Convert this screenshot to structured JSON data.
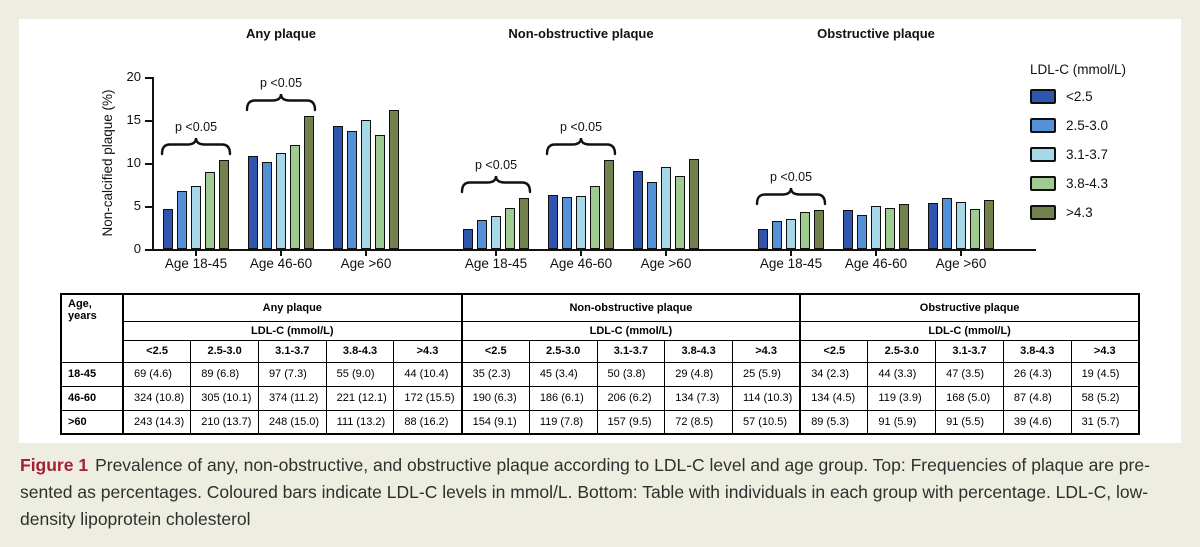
{
  "colors": {
    "page_background": "#edeee1",
    "panel_background": "#ffffff",
    "axis_color": "#111111",
    "caption_label_color": "#a31f34",
    "bar_palette": [
      "#2f55ae",
      "#5591d6",
      "#a7d8e8",
      "#9fcb90",
      "#73814f"
    ]
  },
  "chart_data": {
    "type": "bar",
    "title": "",
    "xlabel": "",
    "ylabel": "Non-calcified plaque (%)",
    "ylim": [
      0,
      20
    ],
    "yticks": [
      0,
      5,
      10,
      15,
      20
    ],
    "grid": false,
    "legend_position": "right",
    "legend_title": "LDL-C (mmol/L)",
    "series_labels": [
      "<2.5",
      "2.5-3.0",
      "3.1-3.7",
      "3.8-4.3",
      ">4.3"
    ],
    "series_colors": [
      "#2f55ae",
      "#5591d6",
      "#a7d8e8",
      "#9fcb90",
      "#73814f"
    ],
    "group_labels": [
      "Age 18-45",
      "Age 46-60",
      "Age >60"
    ],
    "panels": [
      {
        "title": "Any plaque",
        "groups": [
          [
            4.6,
            6.8,
            7.3,
            9.0,
            10.4
          ],
          [
            10.8,
            10.1,
            11.2,
            12.1,
            15.5
          ],
          [
            14.3,
            13.7,
            15.0,
            13.2,
            16.2
          ]
        ]
      },
      {
        "title": "Non-obstructive plaque",
        "groups": [
          [
            2.3,
            3.4,
            3.8,
            4.8,
            5.9
          ],
          [
            6.3,
            6.1,
            6.2,
            7.3,
            10.3
          ],
          [
            9.1,
            7.8,
            9.5,
            8.5,
            10.5
          ]
        ]
      },
      {
        "title": "Obstructive plaque",
        "groups": [
          [
            2.3,
            3.3,
            3.5,
            4.3,
            4.5
          ],
          [
            4.5,
            3.9,
            5.0,
            4.8,
            5.2
          ],
          [
            5.3,
            5.9,
            5.5,
            4.6,
            5.7
          ]
        ]
      }
    ],
    "annotations": [
      {
        "panel": 0,
        "group": 0,
        "label": "p <0.05"
      },
      {
        "panel": 0,
        "group": 1,
        "label": "p <0.05"
      },
      {
        "panel": 1,
        "group": 0,
        "label": "p <0.05"
      },
      {
        "panel": 1,
        "group": 1,
        "label": "p <0.05"
      },
      {
        "panel": 2,
        "group": 0,
        "label": "p <0.05"
      }
    ]
  },
  "table": {
    "corner_header": "Age, years",
    "section_headers": [
      "Any plaque",
      "Non-obstructive plaque",
      "Obstructive plaque"
    ],
    "subheader": "LDL-C (mmol/L)",
    "column_headers": [
      "<2.5",
      "2.5-3.0",
      "3.1-3.7",
      "3.8-4.3",
      ">4.3"
    ],
    "rows": [
      {
        "age": "18-45",
        "values": [
          "69 (4.6)",
          "89 (6.8)",
          "97 (7.3)",
          "55 (9.0)",
          "44 (10.4)",
          "35 (2.3)",
          "45 (3.4)",
          "50 (3.8)",
          "29 (4.8)",
          "25 (5.9)",
          "34 (2.3)",
          "44 (3.3)",
          "47 (3.5)",
          "26 (4.3)",
          "19 (4.5)"
        ]
      },
      {
        "age": "46-60",
        "values": [
          "324 (10.8)",
          "305 (10.1)",
          "374 (11.2)",
          "221 (12.1)",
          "172 (15.5)",
          "190 (6.3)",
          "186 (6.1)",
          "206 (6.2)",
          "134 (7.3)",
          "114 (10.3)",
          "134 (4.5)",
          "119 (3.9)",
          "168 (5.0)",
          "87 (4.8)",
          "58 (5.2)"
        ]
      },
      {
        "age": ">60",
        "values": [
          "243 (14.3)",
          "210 (13.7)",
          "248 (15.0)",
          "111 (13.2)",
          "88 (16.2)",
          "154 (9.1)",
          "119 (7.8)",
          "157 (9.5)",
          "72 (8.5)",
          "57 (10.5)",
          "89 (5.3)",
          "91 (5.9)",
          "91 (5.5)",
          "39 (4.6)",
          "31 (5.7)"
        ]
      }
    ]
  },
  "caption": {
    "label": "Figure 1",
    "lines": [
      "Prevalence of any, non-obstructive, and obstructive plaque according to LDL-C level and age group. Top: Frequencies of plaque are pre-",
      "sented as percentages. Coloured bars indicate LDL-C levels in mmol/L. Bottom: Table with individuals in each group with percentage. LDL-C, low-",
      "density lipoprotein cholesterol"
    ]
  }
}
